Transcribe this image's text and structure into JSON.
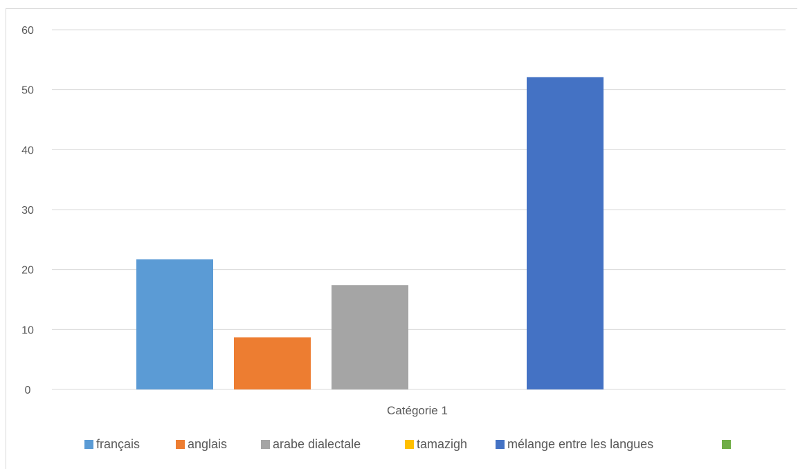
{
  "chart_data": {
    "type": "bar",
    "categories": [
      "Catégorie 1"
    ],
    "series": [
      {
        "name": "français",
        "values": [
          21.7
        ],
        "color": "#5B9BD5"
      },
      {
        "name": "anglais",
        "values": [
          8.7
        ],
        "color": "#ED7D31"
      },
      {
        "name": "arabe dialectale",
        "values": [
          17.4
        ],
        "color": "#A5A5A5"
      },
      {
        "name": "tamazigh",
        "values": [
          0
        ],
        "color": "#FFC000"
      },
      {
        "name": "mélange entre les langues",
        "values": [
          52.1
        ],
        "color": "#4472C4"
      },
      {
        "name": "",
        "values": [
          0
        ],
        "color": "#70AD47"
      }
    ],
    "yticks": [
      "0",
      "10",
      "20",
      "30",
      "40",
      "50",
      "60"
    ],
    "ylim": [
      0,
      60
    ],
    "grid": true,
    "legend_position": "bottom"
  }
}
